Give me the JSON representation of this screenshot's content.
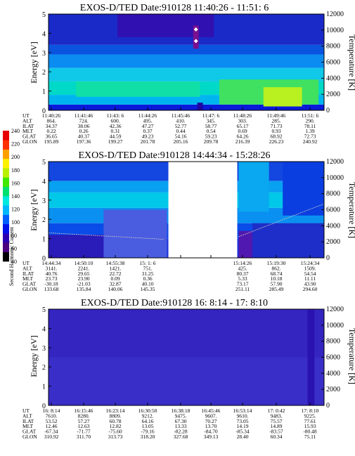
{
  "colorbar": {
    "label": "Second Harmonic Current",
    "ticks": [
      "40",
      "60",
      "80",
      "100",
      "120",
      "140",
      "160",
      "180",
      "200",
      "220",
      "240"
    ],
    "colors": [
      "#000000",
      "#4b007f",
      "#2a00b0",
      "#0010e8",
      "#0060ff",
      "#00b8ff",
      "#00e8e0",
      "#00e070",
      "#40e800",
      "#b8f000",
      "#fff000",
      "#ffa000",
      "#ff3000",
      "#e80000"
    ]
  },
  "chart_data": [
    {
      "type": "heatmap",
      "title": "EXOS-D/TED   Date:910128  11:40:26 - 11:51: 6",
      "ylabel": "Energy [eV]",
      "y2label": "Temperature [K]",
      "ylim": [
        0,
        5
      ],
      "y2lim": [
        0,
        12000
      ],
      "yticks": [
        "0",
        "1",
        "2",
        "3",
        "4",
        "5"
      ],
      "y2ticks": [
        "0",
        "2000",
        "4000",
        "6000",
        "8000",
        "10000",
        "12000"
      ],
      "table_labels": [
        "UT",
        "ALT",
        "ILAT",
        "MLT",
        "GLAT",
        "GLON"
      ],
      "table_columns": [
        {
          "UT": "11:40:26",
          "ALT": "864.",
          "ILAT": "34.37",
          "MLT": "0.22",
          "GLAT": "36.65",
          "GLON": "195.89"
        },
        {
          "UT": "11:41:46",
          "ALT": "724.",
          "ILAT": "38.06",
          "MLT": "0.26",
          "GLAT": "40.37",
          "GLON": "197.36"
        },
        {
          "UT": "11:43: 6",
          "ALT": "600.",
          "ILAT": "42.36",
          "MLT": "0.31",
          "GLAT": "44.59",
          "GLON": "199.27"
        },
        {
          "UT": "11:44:26",
          "ALT": "495.",
          "ILAT": "47.27",
          "MLT": "0.37",
          "GLAT": "49.23",
          "GLON": "201.78"
        },
        {
          "UT": "11:45:46",
          "ALT": "410.",
          "ILAT": "52.77",
          "MLT": "0.44",
          "GLAT": "54.16",
          "GLON": "205.16"
        },
        {
          "UT": "11:47: 6",
          "ALT": "345.",
          "ILAT": "58.77",
          "MLT": "0.54",
          "GLAT": "59.23",
          "GLON": "209.78"
        },
        {
          "UT": "11:48:26",
          "ALT": "303.",
          "ILAT": "65.17",
          "MLT": "0.69",
          "GLAT": "64.26",
          "GLON": "216.39"
        },
        {
          "UT": "11:49:46",
          "ALT": "285.",
          "ILAT": "71.73",
          "MLT": "0.93",
          "GLAT": "68.92",
          "GLON": "226.23"
        },
        {
          "UT": "11:51: 6",
          "ALT": "290.",
          "ILAT": "78.11",
          "MLT": "1.39",
          "GLAT": "72.73",
          "GLON": "240.92"
        }
      ],
      "data_gaps": [],
      "bands": [
        {
          "y0": 0,
          "y1": 0.3,
          "color": "#0a1ad8"
        },
        {
          "y0": 0.3,
          "y1": 0.8,
          "color": "#00b4f0"
        },
        {
          "y0": 0.8,
          "y1": 1.5,
          "color": "#00d8c8"
        },
        {
          "y0": 1.5,
          "y1": 2.2,
          "color": "#10c8e8"
        },
        {
          "y0": 2.2,
          "y1": 2.9,
          "color": "#0a8cf0"
        },
        {
          "y0": 2.9,
          "y1": 3.4,
          "color": "#0a54e0"
        },
        {
          "y0": 3.4,
          "y1": 5,
          "color": "#1a2ac8"
        }
      ],
      "patches": [
        {
          "x0": 0.62,
          "x1": 0.98,
          "y0": 0.3,
          "y1": 1.6,
          "color": "#40e060"
        },
        {
          "x0": 0.78,
          "x1": 0.92,
          "y0": 0.2,
          "y1": 1.2,
          "color": "#b8f020"
        },
        {
          "x0": 0.1,
          "x1": 0.55,
          "y0": 0.7,
          "y1": 1.5,
          "color": "#10e0a8"
        },
        {
          "x0": 0.25,
          "x1": 0.6,
          "y0": 3.8,
          "y1": 5,
          "color": "#3010b0"
        },
        {
          "x0": 0.54,
          "x1": 0.56,
          "y0": 0,
          "y1": 0.4,
          "color": "#2000a0"
        },
        {
          "x0": 0.525,
          "x1": 0.545,
          "y0": 3.2,
          "y1": 4.4,
          "color": "#7a1090"
        }
      ],
      "markers": [
        {
          "x": 0.535,
          "y": 4.2
        },
        {
          "x": 0.535,
          "y": 3.6
        }
      ],
      "temperature_line": false
    },
    {
      "type": "heatmap",
      "title": "EXOS-D/TED   Date:910128  14:44:34 - 15:28:26",
      "ylabel": "Energy [eV]",
      "y2label": "Temperature [K]",
      "ylim": [
        0,
        5
      ],
      "y2lim": [
        0,
        12000
      ],
      "yticks": [
        "0",
        "1",
        "2",
        "3",
        "4",
        "5"
      ],
      "y2ticks": [
        "0",
        "2000",
        "4000",
        "6000",
        "8000",
        "10000",
        "12000"
      ],
      "table_labels": [
        "UT",
        "ALT",
        "ILAT",
        "MLT",
        "GLAT",
        "GLON"
      ],
      "table_columns": [
        {
          "UT": "14:44:34",
          "ALT": "3141.",
          "ILAT": "40.76",
          "MLT": "23.73",
          "GLAT": "-30.18",
          "GLON": "133.68"
        },
        {
          "UT": "14:50:10",
          "ALT": "2241.",
          "ILAT": "29.65",
          "MLT": "23.90",
          "GLAT": "-21.03",
          "GLON": "135.84"
        },
        {
          "UT": "14:55:38",
          "ALT": "1421.",
          "ILAT": "22.72",
          "MLT": "0.09",
          "GLAT": "32.87",
          "GLON": "140.06"
        },
        {
          "UT": "15: 1: 6",
          "ALT": "751.",
          "ILAT": "31.25",
          "MLT": "0.36",
          "GLAT": "40.10",
          "GLON": "145.35"
        },
        {
          "UT": "",
          "ALT": "",
          "ILAT": "",
          "MLT": "",
          "GLAT": "",
          "GLON": ""
        },
        {
          "UT": "",
          "ALT": "",
          "ILAT": "",
          "MLT": "",
          "GLAT": "",
          "GLON": ""
        },
        {
          "UT": "15:14:26",
          "ALT": "425.",
          "ILAT": "80.37",
          "MLT": "5.33",
          "GLAT": "73.17",
          "GLON": "251.11"
        },
        {
          "UT": "15:19:30",
          "ALT": "862.",
          "ILAT": "68.74",
          "MLT": "10.18",
          "GLAT": "57.90",
          "GLON": "285.49"
        },
        {
          "UT": "15:24:34",
          "ALT": "1509.",
          "ILAT": "54.54",
          "MLT": "11.11",
          "GLAT": "43.90",
          "GLON": "294.60"
        }
      ],
      "data_gaps": [
        {
          "x0": 0.435,
          "x1": 0.685
        }
      ],
      "bands": [
        {
          "y0": 0,
          "y1": 1.0,
          "color": "#1a32d8"
        },
        {
          "y0": 1.0,
          "y1": 1.8,
          "color": "#0a4ce8"
        },
        {
          "y0": 1.8,
          "y1": 2.6,
          "color": "#0a90f0"
        },
        {
          "y0": 2.6,
          "y1": 3.4,
          "color": "#00c8e8"
        },
        {
          "y0": 3.4,
          "y1": 4.0,
          "color": "#08a0f0"
        },
        {
          "y0": 4.0,
          "y1": 5,
          "color": "#1446e0"
        }
      ],
      "patches": [
        {
          "x0": 0.0,
          "x1": 0.43,
          "y0": 0,
          "y1": 1.2,
          "color": "#2a1cb8"
        },
        {
          "x0": 0.2,
          "x1": 0.43,
          "y0": 0,
          "y1": 2.5,
          "color": "#4a5ce0"
        },
        {
          "x0": 0.69,
          "x1": 0.74,
          "y0": 0,
          "y1": 1.4,
          "color": "#5018b0"
        },
        {
          "x0": 0.74,
          "x1": 1.0,
          "y0": 0,
          "y1": 1.8,
          "color": "#1e2ec8"
        },
        {
          "x0": 0.69,
          "x1": 0.8,
          "y0": 2.4,
          "y1": 5,
          "color": "#0aa8f0"
        },
        {
          "x0": 0.85,
          "x1": 1.0,
          "y0": 2.2,
          "y1": 5,
          "color": "#0a3ee0"
        }
      ],
      "markers": [],
      "temperature_line": true
    },
    {
      "type": "heatmap",
      "title": "EXOS-D/TED   Date:910128  16: 8:14 - 17: 8:10",
      "ylabel": "Energy [eV]",
      "y2label": "Temperature [K]",
      "ylim": [
        0,
        5
      ],
      "y2lim": [
        0,
        12000
      ],
      "yticks": [
        "0",
        "1",
        "2",
        "3",
        "4",
        "5"
      ],
      "y2ticks": [
        "0",
        "2000",
        "4000",
        "6000",
        "8000",
        "10000",
        "12000"
      ],
      "table_labels": [
        "UT",
        "ALT",
        "ILAT",
        "MLT",
        "GLAT",
        "GLON"
      ],
      "table_columns": [
        {
          "UT": "16: 8:14",
          "ALT": "7610.",
          "ILAT": "53.52",
          "MLT": "12.46",
          "GLAT": "-67.34",
          "GLON": "310.92"
        },
        {
          "UT": "16:15:46",
          "ALT": "8280.",
          "ILAT": "57.27",
          "MLT": "12.63",
          "GLAT": "-71.77",
          "GLON": "311.70"
        },
        {
          "UT": "16:23:14",
          "ALT": "8809.",
          "ILAT": "60.78",
          "MLT": "12.82",
          "GLAT": "-75.60",
          "GLON": "313.73"
        },
        {
          "UT": "16:30:50",
          "ALT": "9212.",
          "ILAT": "64.16",
          "MLT": "13.05",
          "GLAT": "-79.16",
          "GLON": "318.20"
        },
        {
          "UT": "16:38:18",
          "ALT": "9475.",
          "ILAT": "67.30",
          "MLT": "13.33",
          "GLAT": "-82.28",
          "GLON": "327.68"
        },
        {
          "UT": "16:45:46",
          "ALT": "9607.",
          "ILAT": "70.27",
          "MLT": "13.70",
          "GLAT": "-84.70",
          "GLON": "349.13"
        },
        {
          "UT": "16:53:14",
          "ALT": "9610.",
          "ILAT": "73.05",
          "MLT": "14.19",
          "GLAT": "-85.34",
          "GLON": "28.40"
        },
        {
          "UT": "17: 0:42",
          "ALT": "9483.",
          "ILAT": "75.57",
          "MLT": "14.89",
          "GLAT": "-83.57",
          "GLON": "60.34"
        },
        {
          "UT": "17: 8:10",
          "ALT": "9225.",
          "ILAT": "77.61",
          "MLT": "15.93",
          "GLAT": "-80.48",
          "GLON": "75.11"
        }
      ],
      "data_gaps": [],
      "bands": [
        {
          "y0": 0,
          "y1": 5,
          "color": "#3a2ec8"
        }
      ],
      "patches": [
        {
          "x0": 0.0,
          "x1": 1.0,
          "y0": 2.5,
          "y1": 5,
          "color": "#3424c0"
        },
        {
          "x0": 0.94,
          "x1": 0.965,
          "y0": 0,
          "y1": 5,
          "color": "#2a12b0"
        }
      ],
      "markers": [],
      "temperature_line": false
    }
  ]
}
